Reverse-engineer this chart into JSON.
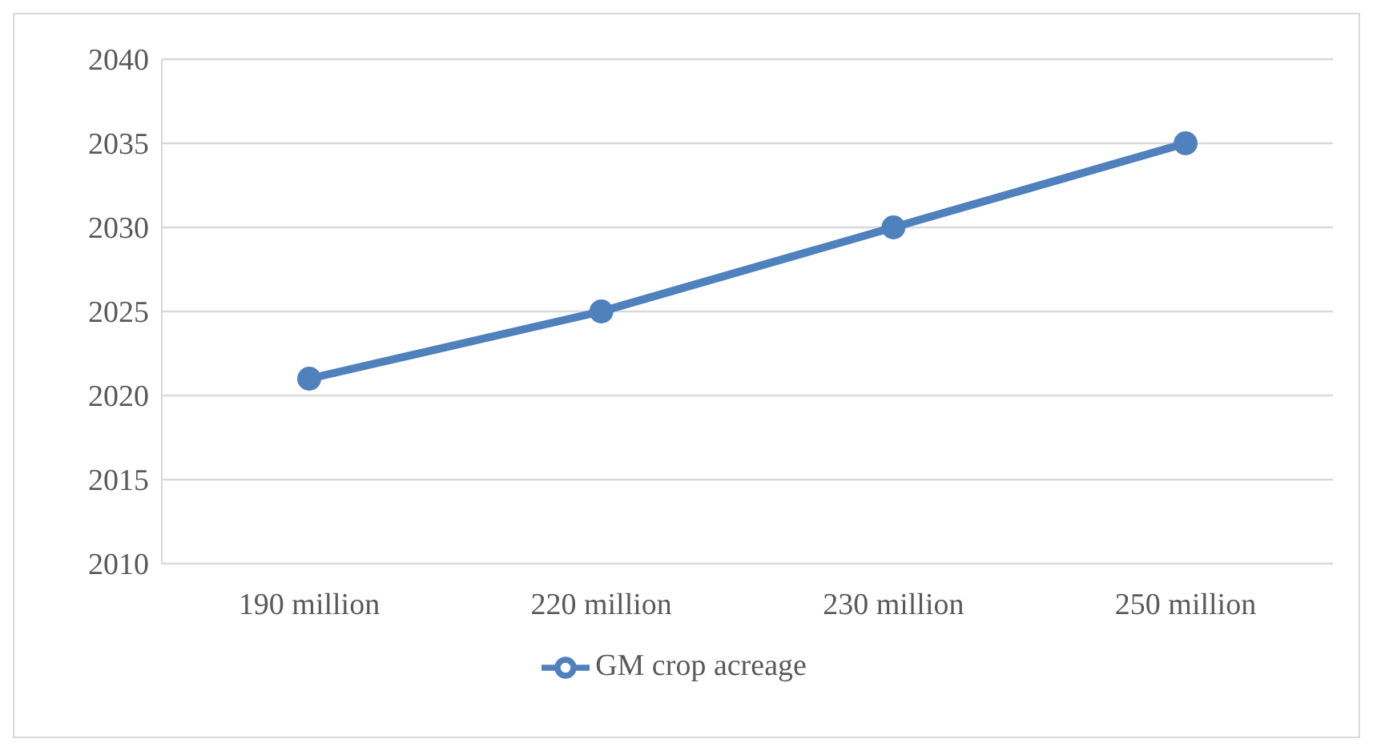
{
  "chart_data": {
    "type": "line",
    "categories": [
      "190 million",
      "220 million",
      "230 million",
      "250 million"
    ],
    "series": [
      {
        "name": "GM crop acreage",
        "color": "#4f81bd",
        "values": [
          2021,
          2025,
          2030,
          2035
        ]
      }
    ],
    "ylim": [
      2010,
      2040
    ],
    "yticks": [
      2010,
      2015,
      2020,
      2025,
      2030,
      2035,
      2040
    ],
    "grid": "y",
    "legend": "bottom",
    "marker": "circle",
    "line_style": "solid"
  }
}
